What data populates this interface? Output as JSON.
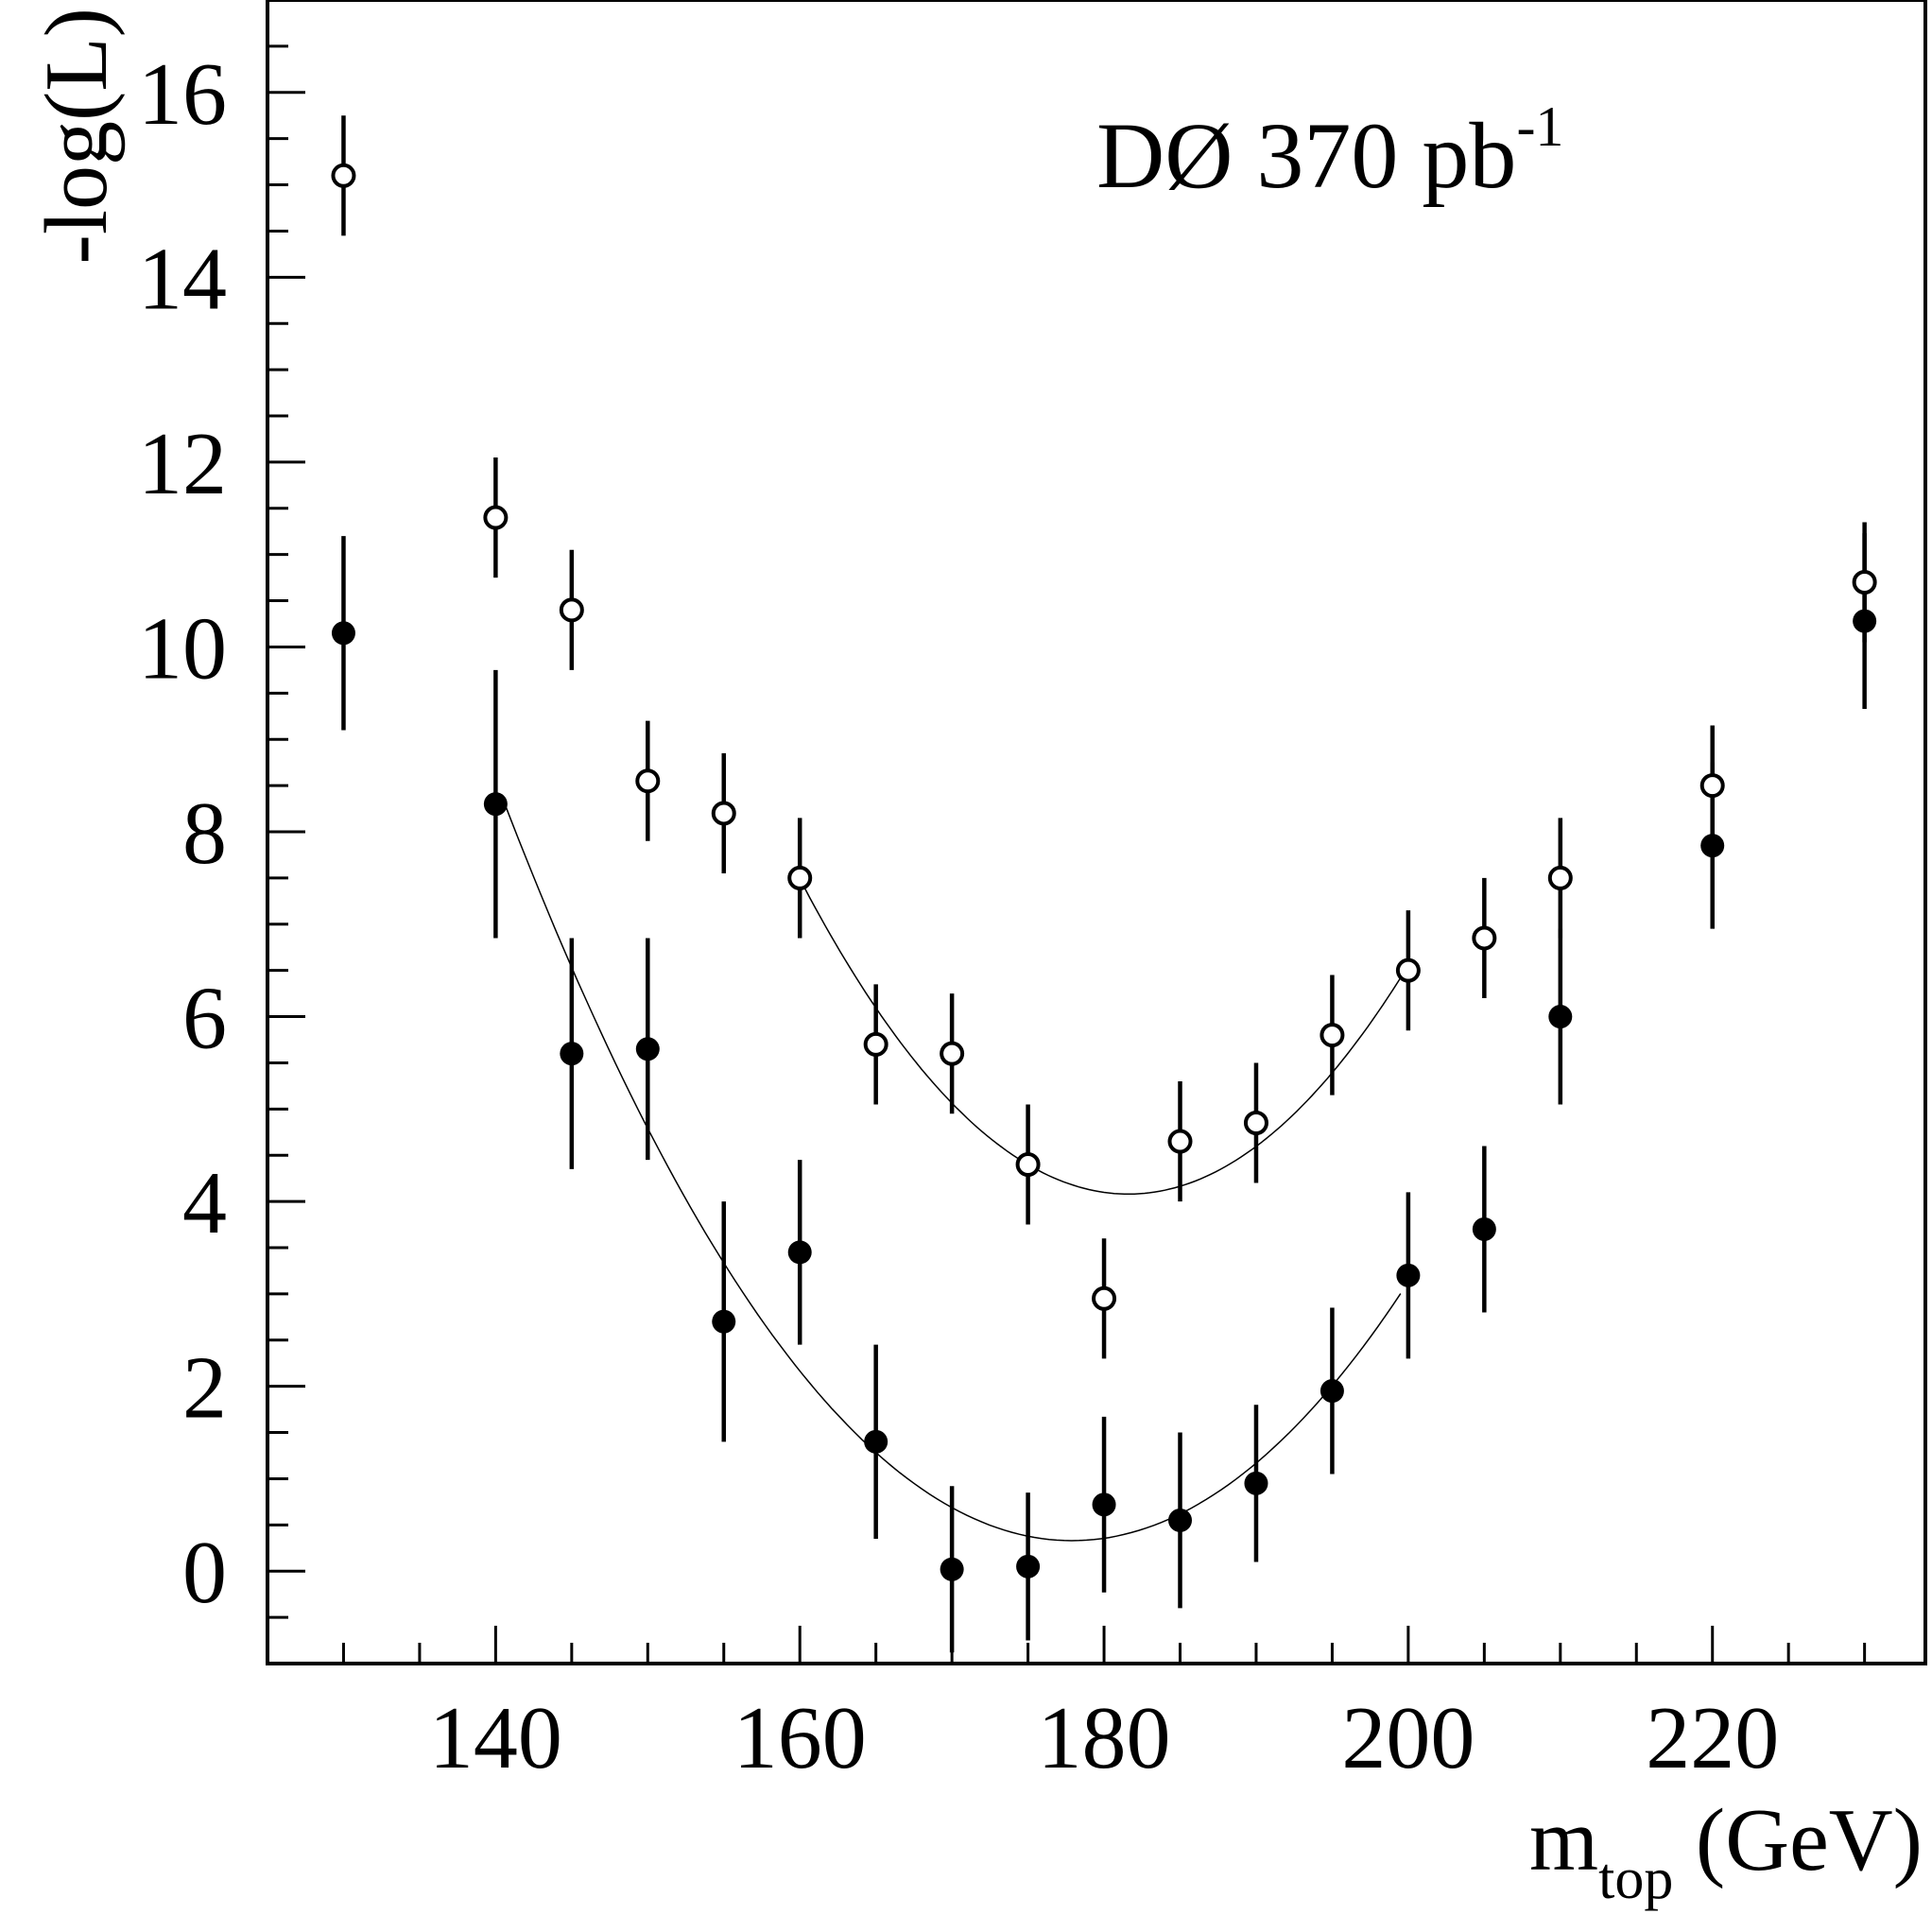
{
  "chart_data": {
    "type": "scatter",
    "annotation": {
      "main": "DØ 370 pb",
      "sup": "-1"
    },
    "xlabel": {
      "main": "m",
      "sub": "top",
      "rest": " (GeV)"
    },
    "ylabel": "-log(L)",
    "xlim": [
      125,
      234
    ],
    "ylim": [
      -1,
      17
    ],
    "x_ticks": [
      140,
      160,
      180,
      200,
      220
    ],
    "y_ticks": [
      0,
      2,
      4,
      6,
      8,
      10,
      12,
      14,
      16
    ],
    "grid": false,
    "series": [
      {
        "marker": "open-circle",
        "points": [
          {
            "x": 130,
            "y": 15.1,
            "yerr": 0.65
          },
          {
            "x": 140,
            "y": 11.4,
            "yerr": 0.65
          },
          {
            "x": 145,
            "y": 10.4,
            "yerr": 0.65
          },
          {
            "x": 150,
            "y": 8.55,
            "yerr": 0.65
          },
          {
            "x": 155,
            "y": 8.2,
            "yerr": 0.65
          },
          {
            "x": 160,
            "y": 7.5,
            "yerr": 0.65
          },
          {
            "x": 165,
            "y": 5.7,
            "yerr": 0.65
          },
          {
            "x": 170,
            "y": 5.6,
            "yerr": 0.65
          },
          {
            "x": 175,
            "y": 4.4,
            "yerr": 0.65
          },
          {
            "x": 180,
            "y": 2.95,
            "yerr": 0.65
          },
          {
            "x": 185,
            "y": 4.65,
            "yerr": 0.65
          },
          {
            "x": 190,
            "y": 4.85,
            "yerr": 0.65
          },
          {
            "x": 195,
            "y": 5.8,
            "yerr": 0.65
          },
          {
            "x": 200,
            "y": 6.5,
            "yerr": 0.65
          },
          {
            "x": 205,
            "y": 6.85,
            "yerr": 0.65
          },
          {
            "x": 210,
            "y": 7.5,
            "yerr": 0.65
          },
          {
            "x": 220,
            "y": 8.5,
            "yerr": 0.65
          },
          {
            "x": 230,
            "y": 10.7,
            "yerr": 0.65
          }
        ],
        "fit": {
          "x_range": [
            160,
            200
          ],
          "vertex_x": 181.6,
          "vertex_y": 4.08,
          "curvature": 0.00731
        }
      },
      {
        "marker": "filled-circle",
        "points": [
          {
            "x": 130,
            "y": 10.15,
            "yerr": 1.05
          },
          {
            "x": 140,
            "y": 8.3,
            "yerr": 1.45
          },
          {
            "x": 145,
            "y": 5.6,
            "yerr": 1.25
          },
          {
            "x": 150,
            "y": 5.65,
            "yerr": 1.2
          },
          {
            "x": 155,
            "y": 2.7,
            "yerr": 1.3
          },
          {
            "x": 160,
            "y": 3.45,
            "yerr": 1.0
          },
          {
            "x": 165,
            "y": 1.4,
            "yerr": 1.05
          },
          {
            "x": 170,
            "y": 0.02,
            "yerr": 0.9
          },
          {
            "x": 175,
            "y": 0.05,
            "yerr": 0.8
          },
          {
            "x": 180,
            "y": 0.72,
            "yerr": 0.95
          },
          {
            "x": 185,
            "y": 0.55,
            "yerr": 0.95
          },
          {
            "x": 190,
            "y": 0.95,
            "yerr": 0.85
          },
          {
            "x": 195,
            "y": 1.95,
            "yerr": 0.9
          },
          {
            "x": 200,
            "y": 3.2,
            "yerr": 0.9
          },
          {
            "x": 205,
            "y": 3.7,
            "yerr": 0.9
          },
          {
            "x": 210,
            "y": 6.0,
            "yerr": 0.95
          },
          {
            "x": 220,
            "y": 7.85,
            "yerr": 0.9
          },
          {
            "x": 230,
            "y": 10.28,
            "yerr": 0.95
          }
        ],
        "fit": {
          "x_range": [
            140.5,
            199.5
          ],
          "vertex_x": 177.9,
          "vertex_y": 0.33,
          "curvature": 0.00573
        }
      }
    ]
  }
}
